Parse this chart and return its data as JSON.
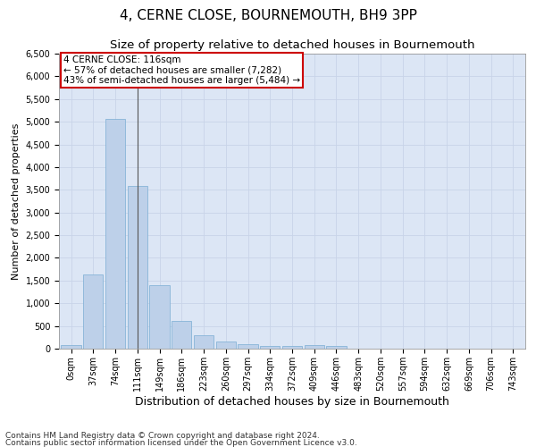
{
  "title": "4, CERNE CLOSE, BOURNEMOUTH, BH9 3PP",
  "subtitle": "Size of property relative to detached houses in Bournemouth",
  "xlabel": "Distribution of detached houses by size in Bournemouth",
  "ylabel": "Number of detached properties",
  "categories": [
    "0sqm",
    "37sqm",
    "74sqm",
    "111sqm",
    "149sqm",
    "186sqm",
    "223sqm",
    "260sqm",
    "297sqm",
    "334sqm",
    "372sqm",
    "409sqm",
    "446sqm",
    "483sqm",
    "520sqm",
    "557sqm",
    "594sqm",
    "632sqm",
    "669sqm",
    "706sqm",
    "743sqm"
  ],
  "values": [
    75,
    1630,
    5070,
    3580,
    1400,
    620,
    305,
    155,
    95,
    60,
    50,
    70,
    50,
    0,
    0,
    0,
    0,
    0,
    0,
    0,
    0
  ],
  "bar_color": "#bdd0e9",
  "bar_edge_color": "#7aadd4",
  "annotation_text_line1": "4 CERNE CLOSE: 116sqm",
  "annotation_text_line2": "← 57% of detached houses are smaller (7,282)",
  "annotation_text_line3": "43% of semi-detached houses are larger (5,484) →",
  "annotation_box_facecolor": "#ffffff",
  "annotation_border_color": "#cc0000",
  "ylim": [
    0,
    6500
  ],
  "yticks": [
    0,
    500,
    1000,
    1500,
    2000,
    2500,
    3000,
    3500,
    4000,
    4500,
    5000,
    5500,
    6000,
    6500
  ],
  "grid_color": "#c8d4e8",
  "background_color": "#dce6f5",
  "footer_line1": "Contains HM Land Registry data © Crown copyright and database right 2024.",
  "footer_line2": "Contains public sector information licensed under the Open Government Licence v3.0.",
  "title_fontsize": 11,
  "subtitle_fontsize": 9.5,
  "xlabel_fontsize": 9,
  "ylabel_fontsize": 8,
  "tick_fontsize": 7,
  "footer_fontsize": 6.5,
  "annotation_fontsize": 7.5
}
